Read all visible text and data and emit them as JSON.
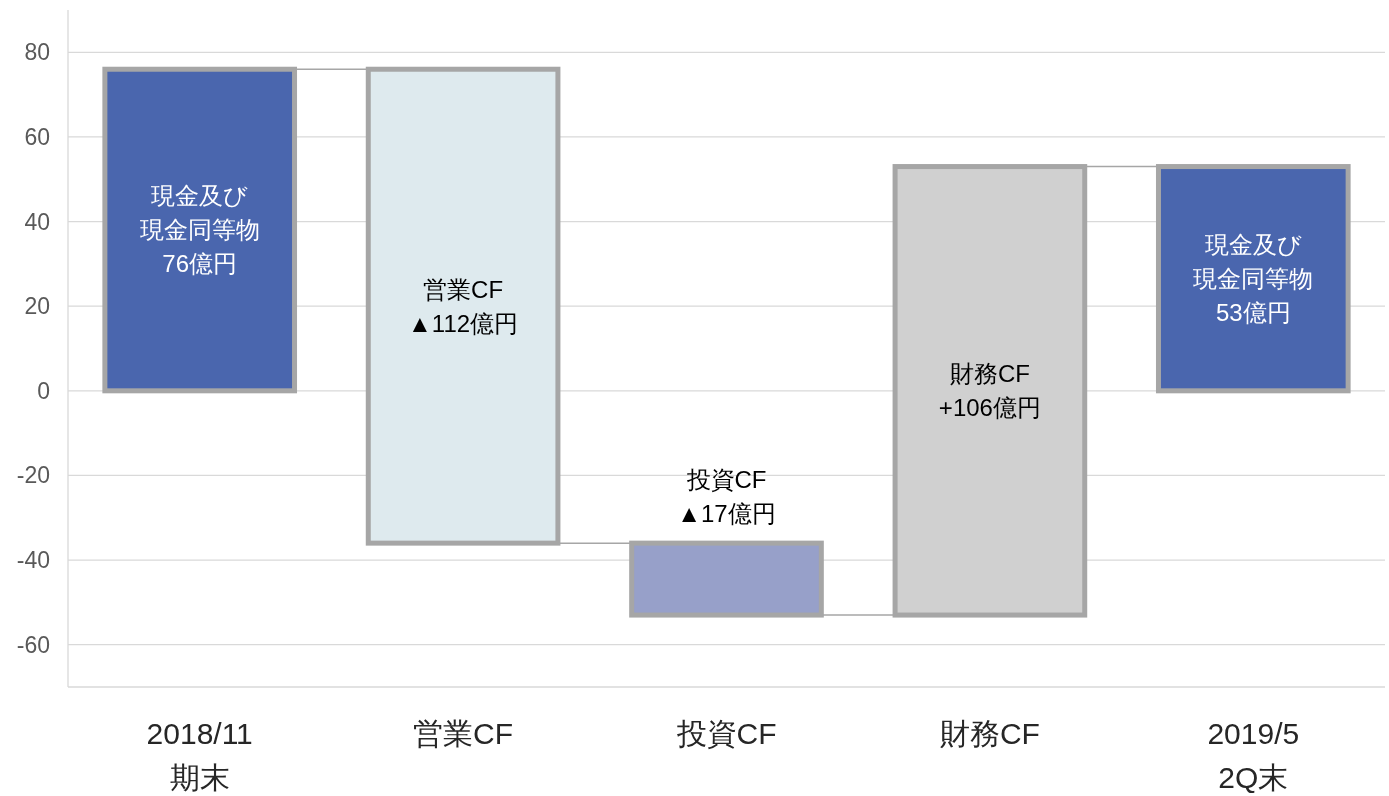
{
  "chart_data": {
    "type": "bar",
    "categories": [
      "2018/11\n期末",
      "営業CF",
      "投資CF",
      "財務CF",
      "2019/5\n2Q末"
    ],
    "base": [
      0,
      76,
      -36,
      -53,
      0
    ],
    "values": [
      76,
      -112,
      -17,
      106,
      53
    ],
    "colors": [
      "#4a66ae",
      "#deeaee",
      "#97a0c9",
      "#d0d0d0",
      "#4a66ae"
    ],
    "value_labels": [
      "現金及び現金同等物\n76億円",
      "営業CF▲112億円",
      "投資CF▲17億円",
      "財務CF+106億円",
      "現金及び現金同等物\n53億円"
    ],
    "ylim": [
      -70,
      90
    ],
    "yticks": [
      -60,
      -40,
      -20,
      0,
      20,
      40,
      60,
      80
    ],
    "grid": "y",
    "legend": false
  }
}
